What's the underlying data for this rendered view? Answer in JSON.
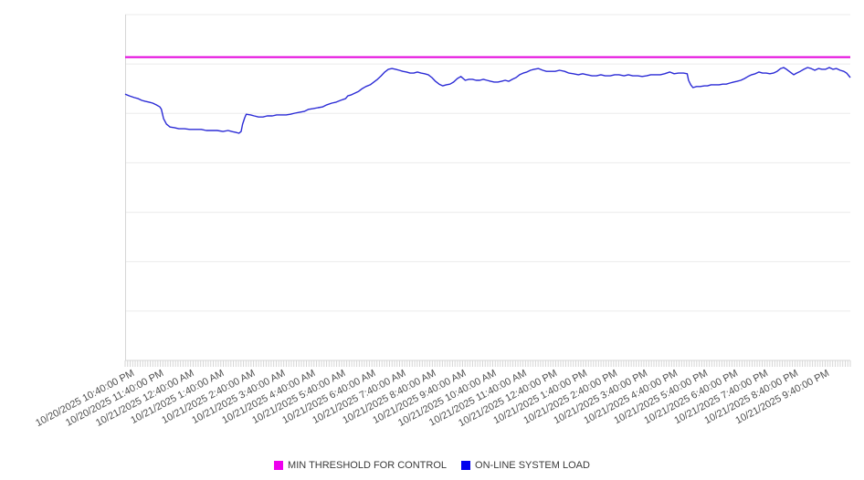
{
  "chart_data": {
    "type": "line",
    "title": "",
    "xlabel": "",
    "ylabel": "",
    "ylim": [
      0,
      100
    ],
    "grid": true,
    "legend_position": "bottom",
    "x_labels": [
      "10/20/2025 10:40:00 PM",
      "10/20/2025 11:40:00 PM",
      "10/21/2025 12:40:00 AM",
      "10/21/2025 1:40:00 AM",
      "10/21/2025 2:40:00 AM",
      "10/21/2025 3:40:00 AM",
      "10/21/2025 4:40:00 AM",
      "10/21/2025 5:40:00 AM",
      "10/21/2025 6:40:00 AM",
      "10/21/2025 7:40:00 AM",
      "10/21/2025 8:40:00 AM",
      "10/21/2025 9:40:00 AM",
      "10/21/2025 10:40:00 AM",
      "10/21/2025 11:40:00 AM",
      "10/21/2025 12:40:00 PM",
      "10/21/2025 1:40:00 PM",
      "10/21/2025 2:40:00 PM",
      "10/21/2025 3:40:00 PM",
      "10/21/2025 4:40:00 PM",
      "10/21/2025 5:40:00 PM",
      "10/21/2025 6:40:00 PM",
      "10/21/2025 7:40:00 PM",
      "10/21/2025 8:40:00 PM",
      "10/21/2025 9:40:00 PM"
    ],
    "layout": {
      "grid_rows": 7,
      "x_minor_ticks": 288,
      "grid_color": "#ebebeb",
      "axis_color": "#d6d6d6",
      "label_color": "#4e4e4e"
    },
    "series": [
      {
        "name": "MIN THRESHOLD FOR CONTROL",
        "type": "threshold-line",
        "color": "#ee00ee",
        "line_color": "#e300dc",
        "value": 87.7
      },
      {
        "name": "ON-LINE SYSTEM LOAD",
        "type": "line",
        "color": "#0000ee",
        "line_color": "#2b2bd6",
        "points": [
          [
            0,
            77
          ],
          [
            0.006,
            76.5
          ],
          [
            0.013,
            76
          ],
          [
            0.018,
            75.7
          ],
          [
            0.023,
            75.2
          ],
          [
            0.028,
            74.9
          ],
          [
            0.033,
            74.7
          ],
          [
            0.038,
            74.4
          ],
          [
            0.043,
            73.9
          ],
          [
            0.048,
            73.3
          ],
          [
            0.05,
            72.6
          ],
          [
            0.053,
            69.9
          ],
          [
            0.057,
            68.3
          ],
          [
            0.062,
            67.5
          ],
          [
            0.068,
            67.3
          ],
          [
            0.074,
            67
          ],
          [
            0.082,
            67
          ],
          [
            0.089,
            66.8
          ],
          [
            0.097,
            66.8
          ],
          [
            0.105,
            66.8
          ],
          [
            0.112,
            66.5
          ],
          [
            0.12,
            66.5
          ],
          [
            0.127,
            66.5
          ],
          [
            0.135,
            66.2
          ],
          [
            0.142,
            66.5
          ],
          [
            0.147,
            66.2
          ],
          [
            0.152,
            66
          ],
          [
            0.157,
            65.7
          ],
          [
            0.16,
            66.2
          ],
          [
            0.162,
            68.3
          ],
          [
            0.165,
            70.2
          ],
          [
            0.167,
            71.2
          ],
          [
            0.173,
            71
          ],
          [
            0.178,
            70.7
          ],
          [
            0.184,
            70.4
          ],
          [
            0.19,
            70.4
          ],
          [
            0.196,
            70.7
          ],
          [
            0.203,
            70.7
          ],
          [
            0.209,
            71
          ],
          [
            0.215,
            71
          ],
          [
            0.222,
            71
          ],
          [
            0.228,
            71.2
          ],
          [
            0.234,
            71.5
          ],
          [
            0.241,
            71.8
          ],
          [
            0.247,
            72
          ],
          [
            0.253,
            72.6
          ],
          [
            0.259,
            72.8
          ],
          [
            0.266,
            73.1
          ],
          [
            0.272,
            73.3
          ],
          [
            0.278,
            73.9
          ],
          [
            0.285,
            74.4
          ],
          [
            0.291,
            74.7
          ],
          [
            0.297,
            75.2
          ],
          [
            0.304,
            75.7
          ],
          [
            0.307,
            76.5
          ],
          [
            0.312,
            76.8
          ],
          [
            0.317,
            77.3
          ],
          [
            0.322,
            77.8
          ],
          [
            0.327,
            78.6
          ],
          [
            0.332,
            79.2
          ],
          [
            0.338,
            79.7
          ],
          [
            0.343,
            80.5
          ],
          [
            0.348,
            81.3
          ],
          [
            0.353,
            82.3
          ],
          [
            0.358,
            83.4
          ],
          [
            0.363,
            84.2
          ],
          [
            0.368,
            84.4
          ],
          [
            0.373,
            84.2
          ],
          [
            0.378,
            83.9
          ],
          [
            0.383,
            83.6
          ],
          [
            0.388,
            83.4
          ],
          [
            0.393,
            83.1
          ],
          [
            0.398,
            83.1
          ],
          [
            0.403,
            83.4
          ],
          [
            0.408,
            83.1
          ],
          [
            0.413,
            82.9
          ],
          [
            0.418,
            82.6
          ],
          [
            0.423,
            81.8
          ],
          [
            0.428,
            80.7
          ],
          [
            0.433,
            79.9
          ],
          [
            0.438,
            79.4
          ],
          [
            0.443,
            79.7
          ],
          [
            0.448,
            79.9
          ],
          [
            0.453,
            80.5
          ],
          [
            0.458,
            81.5
          ],
          [
            0.463,
            82.1
          ],
          [
            0.469,
            81
          ],
          [
            0.474,
            81.3
          ],
          [
            0.479,
            81.3
          ],
          [
            0.484,
            81
          ],
          [
            0.489,
            81
          ],
          [
            0.494,
            81.3
          ],
          [
            0.499,
            81
          ],
          [
            0.504,
            80.7
          ],
          [
            0.509,
            80.5
          ],
          [
            0.514,
            80.5
          ],
          [
            0.519,
            80.7
          ],
          [
            0.524,
            81
          ],
          [
            0.529,
            80.7
          ],
          [
            0.534,
            81.3
          ],
          [
            0.539,
            81.8
          ],
          [
            0.544,
            82.6
          ],
          [
            0.549,
            83.1
          ],
          [
            0.554,
            83.4
          ],
          [
            0.559,
            83.9
          ],
          [
            0.564,
            84.2
          ],
          [
            0.57,
            84.4
          ],
          [
            0.576,
            83.9
          ],
          [
            0.581,
            83.6
          ],
          [
            0.587,
            83.6
          ],
          [
            0.593,
            83.6
          ],
          [
            0.599,
            83.9
          ],
          [
            0.606,
            83.6
          ],
          [
            0.612,
            83.1
          ],
          [
            0.618,
            82.9
          ],
          [
            0.625,
            82.6
          ],
          [
            0.631,
            82.9
          ],
          [
            0.637,
            82.6
          ],
          [
            0.644,
            82.3
          ],
          [
            0.65,
            82.3
          ],
          [
            0.656,
            82.6
          ],
          [
            0.662,
            82.3
          ],
          [
            0.669,
            82.3
          ],
          [
            0.675,
            82.6
          ],
          [
            0.681,
            82.6
          ],
          [
            0.688,
            82.3
          ],
          [
            0.694,
            82.6
          ],
          [
            0.7,
            82.3
          ],
          [
            0.707,
            82.3
          ],
          [
            0.713,
            82.1
          ],
          [
            0.719,
            82.3
          ],
          [
            0.725,
            82.6
          ],
          [
            0.732,
            82.6
          ],
          [
            0.738,
            82.6
          ],
          [
            0.744,
            82.9
          ],
          [
            0.751,
            83.4
          ],
          [
            0.757,
            82.9
          ],
          [
            0.763,
            83.1
          ],
          [
            0.77,
            83.1
          ],
          [
            0.775,
            82.9
          ],
          [
            0.777,
            81
          ],
          [
            0.78,
            79.7
          ],
          [
            0.783,
            78.9
          ],
          [
            0.788,
            79.2
          ],
          [
            0.793,
            79.2
          ],
          [
            0.799,
            79.4
          ],
          [
            0.803,
            79.4
          ],
          [
            0.808,
            79.7
          ],
          [
            0.813,
            79.7
          ],
          [
            0.819,
            79.7
          ],
          [
            0.824,
            79.9
          ],
          [
            0.829,
            79.9
          ],
          [
            0.834,
            80.2
          ],
          [
            0.839,
            80.5
          ],
          [
            0.844,
            80.7
          ],
          [
            0.849,
            81
          ],
          [
            0.854,
            81.5
          ],
          [
            0.859,
            82.1
          ],
          [
            0.864,
            82.6
          ],
          [
            0.869,
            82.9
          ],
          [
            0.874,
            83.4
          ],
          [
            0.879,
            83.1
          ],
          [
            0.884,
            83.1
          ],
          [
            0.889,
            82.9
          ],
          [
            0.894,
            83.1
          ],
          [
            0.899,
            83.6
          ],
          [
            0.904,
            84.4
          ],
          [
            0.908,
            84.7
          ],
          [
            0.912,
            84.2
          ],
          [
            0.917,
            83.4
          ],
          [
            0.922,
            82.6
          ],
          [
            0.926,
            83.1
          ],
          [
            0.931,
            83.6
          ],
          [
            0.936,
            84.2
          ],
          [
            0.941,
            84.7
          ],
          [
            0.946,
            84.4
          ],
          [
            0.951,
            83.9
          ],
          [
            0.956,
            84.4
          ],
          [
            0.961,
            84.2
          ],
          [
            0.966,
            84.2
          ],
          [
            0.971,
            84.7
          ],
          [
            0.976,
            84.2
          ],
          [
            0.981,
            84.4
          ],
          [
            0.986,
            83.9
          ],
          [
            0.991,
            83.6
          ],
          [
            0.995,
            83.1
          ],
          [
            1,
            81.8
          ]
        ]
      }
    ]
  },
  "legend": {
    "items": [
      {
        "label": "MIN THRESHOLD FOR CONTROL",
        "color": "#ee00ee"
      },
      {
        "label": "ON-LINE SYSTEM LOAD",
        "color": "#0000ee"
      }
    ]
  }
}
